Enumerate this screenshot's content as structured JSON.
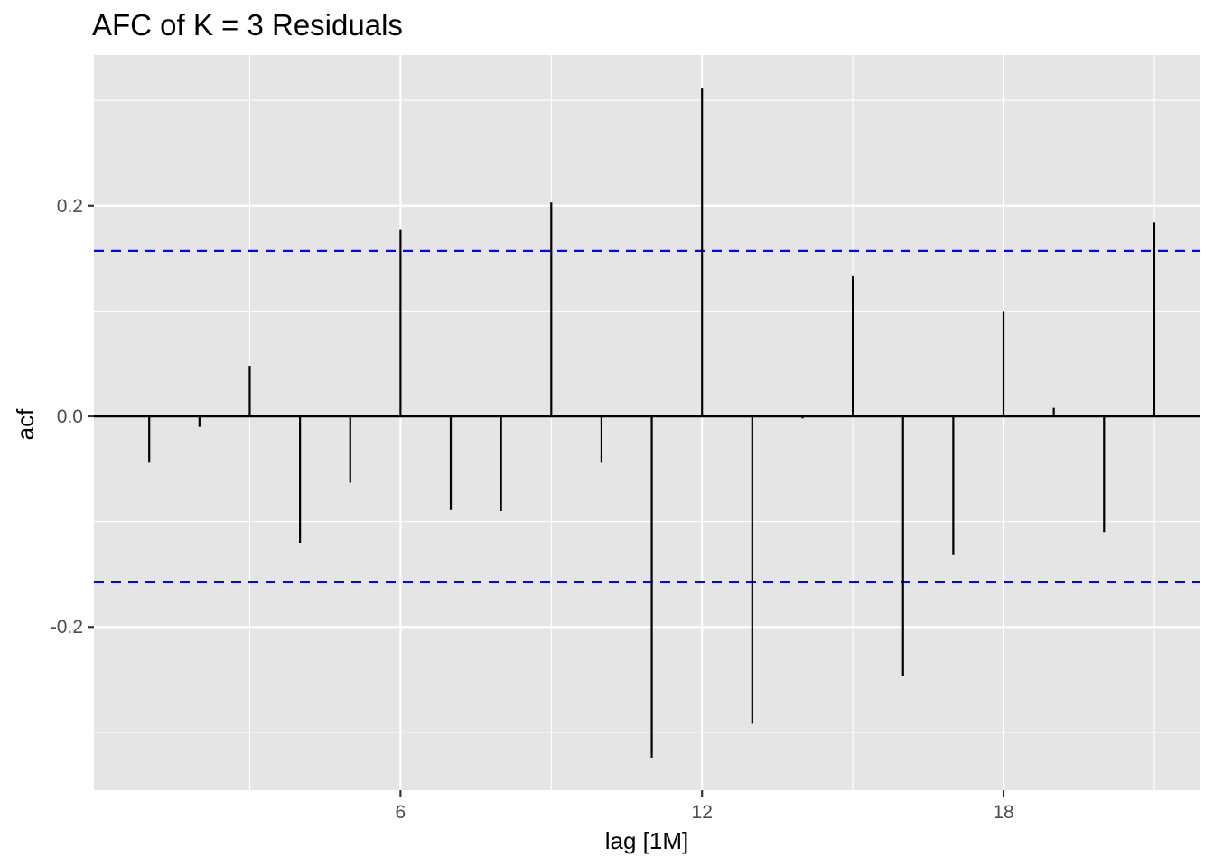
{
  "chart_data": {
    "type": "bar",
    "title": "AFC of K = 3 Residuals",
    "xlabel": "lag [1M]",
    "ylabel": "acf",
    "x": [
      1,
      2,
      3,
      4,
      5,
      6,
      7,
      8,
      9,
      10,
      11,
      12,
      13,
      14,
      15,
      16,
      17,
      18,
      19,
      20,
      21
    ],
    "values": [
      -0.044,
      -0.01,
      0.048,
      -0.12,
      -0.063,
      0.177,
      -0.089,
      -0.09,
      0.203,
      -0.044,
      -0.324,
      0.312,
      -0.292,
      -0.002,
      0.133,
      -0.247,
      -0.131,
      0.1,
      0.008,
      -0.11,
      0.184
    ],
    "confidence_bound": 0.157,
    "xlim": [
      -0.1,
      21.9
    ],
    "ylim": [
      -0.355,
      0.343
    ],
    "x_ticks": [
      6,
      12,
      18
    ],
    "x_tick_labels": [
      "6",
      "12",
      "18"
    ],
    "y_ticks": [
      -0.2,
      0.0,
      0.2
    ],
    "y_tick_labels": [
      "-0.2",
      "0.0",
      "0.2"
    ],
    "grid": true,
    "colors": {
      "panel_background": "#e5e5e5",
      "grid_line": "#ffffff",
      "bar": "#000000",
      "zero_line": "#000000",
      "confidence_line": "#0000ff"
    }
  }
}
